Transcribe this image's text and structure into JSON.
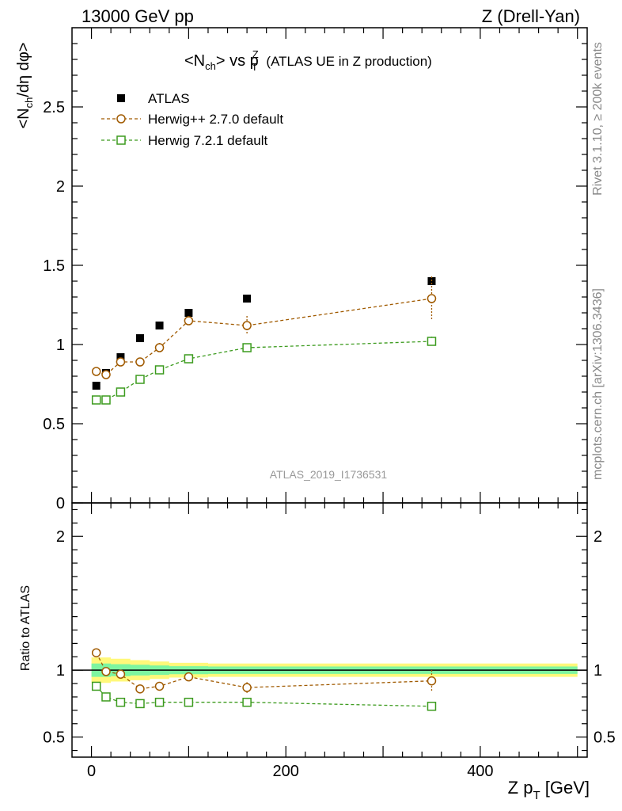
{
  "header": {
    "left": "13000 GeV pp",
    "right": "Z (Drell-Yan)"
  },
  "side": {
    "rivet": "Rivet 3.1.10, ≥ 200k events",
    "mcplots": "mcplots.cern.ch [arXiv:1306.3436]"
  },
  "chart_data": {
    "type": "scatter",
    "title": "<N_ch> vs p_T^Z (ATLAS UE in Z production)",
    "watermark": "ATLAS_2019_I1736531",
    "xlabel": "Z p_T [GeV]",
    "ylabel": "<N_ch/dη dφ>",
    "ratio_ylabel": "Ratio to ATLAS",
    "xlim": [
      -20,
      510
    ],
    "ylim": [
      0,
      3.0
    ],
    "ratio_ylim": [
      0.35,
      2.25
    ],
    "x_ticks": [
      "0",
      "200",
      "400"
    ],
    "y_ticks": [
      "0",
      "0.5",
      "1",
      "1.5",
      "2",
      "2.5"
    ],
    "ratio_ticks": [
      "0.5",
      "1",
      "2"
    ],
    "legend_position": "top-left",
    "colors": {
      "data": "#000000",
      "herwigpp": "#a05a00",
      "herwig7": "#3c9b1e",
      "band_inner": "#7df5a0",
      "band_outer": "#fff87a"
    },
    "series": [
      {
        "name": "ATLAS",
        "marker": "filled-square",
        "x": [
          5,
          15,
          30,
          50,
          70,
          100,
          160,
          350
        ],
        "y": [
          0.74,
          0.82,
          0.92,
          1.04,
          1.12,
          1.2,
          1.29,
          1.4
        ],
        "yerr": [
          0.005,
          0.005,
          0.006,
          0.007,
          0.008,
          0.01,
          0.012,
          0.015
        ]
      },
      {
        "name": "Herwig++ 2.7.0 default",
        "marker": "open-circle",
        "line": "dashed",
        "x": [
          5,
          15,
          30,
          50,
          70,
          100,
          160,
          350
        ],
        "y": [
          0.83,
          0.81,
          0.89,
          0.89,
          0.98,
          1.15,
          1.12,
          1.29
        ],
        "yerr": [
          0.01,
          0.01,
          0.01,
          0.01,
          0.03,
          0.03,
          0.06,
          0.14
        ],
        "ratio": [
          1.13,
          0.99,
          0.97,
          0.86,
          0.88,
          0.95,
          0.87,
          0.92
        ],
        "ratio_err": [
          0.01,
          0.01,
          0.01,
          0.01,
          0.02,
          0.03,
          0.04,
          0.08
        ]
      },
      {
        "name": "Herwig 7.2.1 default",
        "marker": "open-square",
        "line": "dashed",
        "x": [
          5,
          15,
          30,
          50,
          70,
          100,
          160,
          350
        ],
        "y": [
          0.65,
          0.65,
          0.7,
          0.78,
          0.84,
          0.91,
          0.98,
          1.02
        ],
        "yerr": [
          0.005,
          0.005,
          0.006,
          0.007,
          0.008,
          0.01,
          0.01,
          0.03
        ],
        "ratio": [
          0.88,
          0.8,
          0.76,
          0.75,
          0.76,
          0.76,
          0.76,
          0.73
        ],
        "ratio_err": [
          0.005,
          0.005,
          0.006,
          0.007,
          0.008,
          0.01,
          0.01,
          0.02
        ]
      }
    ],
    "band_x": [
      0,
      20,
      40,
      60,
      80,
      120,
      500
    ],
    "band_inner": [
      0.05,
      0.045,
      0.04,
      0.035,
      0.03,
      0.028,
      0.028
    ],
    "band_outer": [
      0.095,
      0.085,
      0.075,
      0.065,
      0.055,
      0.05,
      0.05
    ]
  }
}
